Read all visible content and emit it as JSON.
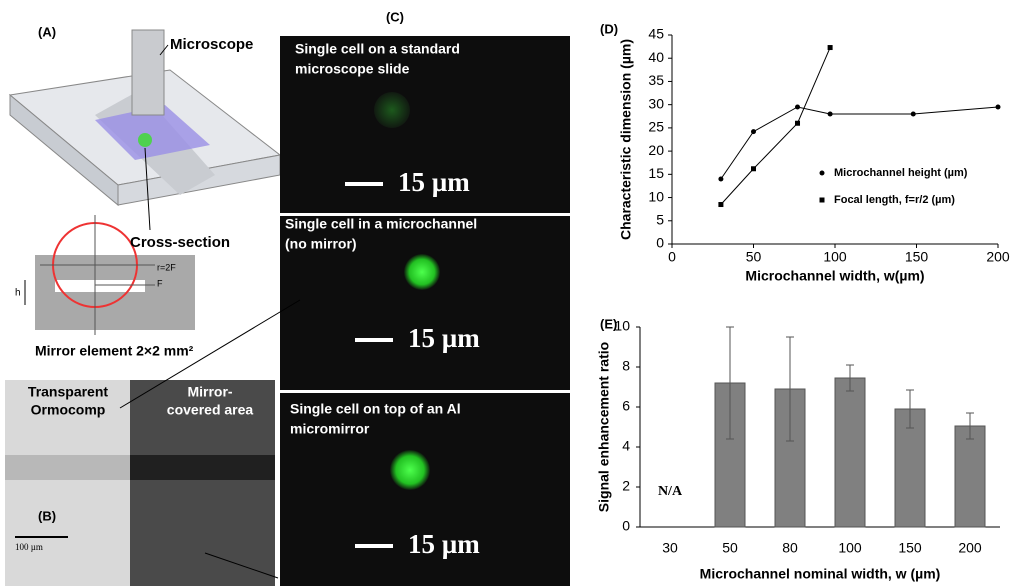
{
  "panels": {
    "a": {
      "label": "(A)",
      "microscope": "Microscope",
      "cross_section": "Cross-section",
      "r": "r=2F",
      "f": "F",
      "h": "h",
      "mirror": "Mirror element  2×2 mm²"
    },
    "b": {
      "label": "(B)",
      "left": [
        "Transparent",
        "Ormocomp"
      ],
      "right": [
        "Mirror-",
        "covered area"
      ],
      "scale": "100 µm"
    },
    "c": {
      "label": "(C)",
      "images": [
        {
          "caption": [
            "Single cell on a standard",
            "microscope slide"
          ],
          "scale": "15 µm"
        },
        {
          "caption": [
            "Single cell in a microchannel",
            "(no mirror)"
          ],
          "scale": "15 µm"
        },
        {
          "caption": [
            "Single cell on top of an Al",
            "micromirror"
          ],
          "scale": "15 µm"
        }
      ]
    }
  },
  "chart_data": [
    {
      "type": "line",
      "label": "(D)",
      "xlabel": "Microchannel width, w(µm)",
      "ylabel": "Characteristic dimension (µm)",
      "xlim": [
        0,
        200
      ],
      "ylim": [
        0,
        45
      ],
      "xticks": [
        0,
        50,
        100,
        150,
        200
      ],
      "yticks": [
        0,
        5,
        10,
        15,
        20,
        25,
        30,
        35,
        40,
        45
      ],
      "legend": "right",
      "series": [
        {
          "name": "Microchannel height (µm)",
          "color": "#000000",
          "marker": "circle",
          "x": [
            30,
            50,
            77,
            97,
            148,
            200
          ],
          "values": [
            14,
            24.2,
            29.5,
            28,
            28,
            29.5
          ]
        },
        {
          "name": "Focal length, f=r/2 (µm)",
          "color": "#000000",
          "marker": "square",
          "x": [
            30,
            50,
            77,
            97
          ],
          "values": [
            8.5,
            16.2,
            26,
            42.3
          ]
        }
      ]
    },
    {
      "type": "bar",
      "label": "(E)",
      "xlabel": "Microchannel nominal width, w (µm)",
      "ylabel": "Signal enhancement ratio",
      "categories": [
        "30",
        "50",
        "80",
        "100",
        "150",
        "200"
      ],
      "values": [
        null,
        7.2,
        6.9,
        7.45,
        5.9,
        5.05
      ],
      "errors": [
        null,
        2.8,
        2.6,
        0.65,
        0.95,
        0.65
      ],
      "color": "#808080",
      "ylim": [
        0,
        10
      ],
      "yticks": [
        0,
        2,
        4,
        6,
        8,
        10
      ],
      "annotation": "N/A"
    }
  ]
}
